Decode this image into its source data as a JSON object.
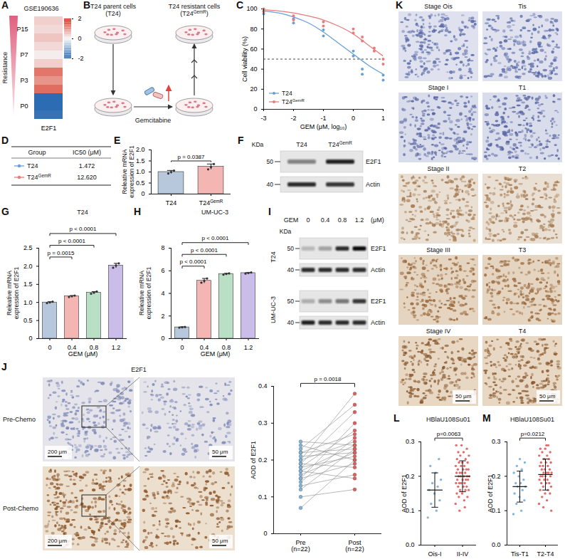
{
  "superscript_text": "GemR",
  "chart_data": [
    {
      "panel": "A",
      "type": "heatmap",
      "title": "GSE190636",
      "side_label": "Resistance",
      "categories": [
        "E2F1"
      ],
      "rows": [
        null,
        "P15",
        null,
        null,
        "P7",
        null,
        null,
        "P3",
        null,
        null,
        "P0",
        null
      ],
      "values": [
        [
          0.4
        ],
        [
          0.3
        ],
        [
          0.5
        ],
        [
          0.3
        ],
        [
          0.1
        ],
        [
          0.4
        ],
        [
          1.3
        ],
        [
          1.0
        ],
        [
          1.4
        ],
        [
          -2.0
        ],
        [
          -2.0
        ],
        [
          -1.9
        ]
      ],
      "colorbar": {
        "range": [
          -2,
          2
        ],
        "ticks": [
          -2,
          0,
          2
        ],
        "colors": [
          "#2b6cb3",
          "#f7f7f7",
          "#d7301f"
        ]
      }
    },
    {
      "panel": "C",
      "type": "line",
      "x_label": "GEM (μM, log₁₀)",
      "y_label": "Cell viability (%)",
      "xlim": [
        -3,
        1
      ],
      "xticks": [
        -3,
        -2,
        -1,
        0,
        1
      ],
      "ylim": [
        0,
        100
      ],
      "yticks": [
        0,
        20,
        40,
        60,
        80,
        100
      ],
      "threshold": 50,
      "legend": "lower left",
      "series": [
        {
          "name": "T24",
          "color": "#6b9fd4",
          "x": [
            -3,
            -3,
            -2,
            -2,
            -1,
            -1,
            0,
            0,
            0.3,
            0.3,
            1,
            1
          ],
          "values": [
            98,
            95,
            90,
            86,
            79,
            73,
            58,
            53,
            40,
            35,
            34,
            29
          ],
          "fit_x": [
            -3,
            -2.5,
            -2,
            -1.5,
            -1,
            -0.5,
            0,
            0.5,
            1
          ],
          "fit_values": [
            98,
            96,
            92,
            86,
            77,
            66,
            55,
            44,
            35
          ]
        },
        {
          "name": "T24GemR",
          "color": "#e97b7b",
          "x": [
            -3,
            -3,
            -2,
            -2,
            -1,
            -1,
            0,
            0,
            0.3,
            0.3,
            0.7,
            0.7,
            1,
            1
          ],
          "values": [
            100,
            97,
            93,
            89,
            87,
            83,
            80,
            76,
            72,
            68,
            61,
            58,
            50,
            45
          ],
          "fit_x": [
            -3,
            -2.5,
            -2,
            -1.5,
            -1,
            -0.5,
            0,
            0.5,
            1
          ],
          "fit_values": [
            99,
            98,
            96,
            93,
            89,
            83,
            75,
            64,
            53
          ]
        }
      ]
    },
    {
      "panel": "E",
      "type": "bar",
      "y_label": "Releative mRNA expression of E2F1",
      "categories": [
        "T24",
        "T24GemR"
      ],
      "values": [
        1.0,
        1.24
      ],
      "error": [
        0.07,
        0.12
      ],
      "points": [
        [
          0.93,
          1.0,
          1.06
        ],
        [
          1.12,
          1.22,
          1.36
        ]
      ],
      "colors": [
        "#b7c8dc",
        "#f3b6b3"
      ],
      "ylim": [
        0,
        2
      ],
      "yticks": [
        0,
        0.5,
        {
          "value": 1,
          "label": "1.0"
        },
        1.5,
        {
          "value": 2,
          "label": "2.0"
        }
      ],
      "comparisons": [
        {
          "pair": [
            "T24",
            "T24GemR"
          ],
          "label": "p = 0.0387"
        }
      ]
    },
    {
      "panel": "G",
      "type": "bar",
      "title": "T24",
      "x_label": "GEM (μM)",
      "y_label": "Releative mRNA expression of E2F1",
      "categories": [
        "0",
        "0.4",
        "0.8",
        "1.2"
      ],
      "values": [
        1.0,
        1.17,
        1.27,
        2.02
      ],
      "error": [
        0.02,
        0.02,
        0.03,
        0.06
      ],
      "points": [
        [
          0.98,
          1.0,
          1.02
        ],
        [
          1.15,
          1.17,
          1.19
        ],
        [
          1.24,
          1.27,
          1.3
        ],
        [
          1.96,
          2.02,
          2.08
        ]
      ],
      "colors": [
        "#b7c8dc",
        "#f3b6b3",
        "#b9dfc5",
        "#cbbde9"
      ],
      "ylim": [
        0,
        2.5
      ],
      "yticks": [
        0,
        0.5,
        {
          "value": 1,
          "label": "1.0"
        },
        1.5,
        {
          "value": 2,
          "label": "2.0"
        },
        2.5
      ],
      "comparisons": [
        {
          "pair": [
            "0",
            "0.4"
          ],
          "label": "p = 0.0015"
        },
        {
          "pair": [
            "0",
            "0.8"
          ],
          "label": "p < 0.0001"
        },
        {
          "pair": [
            "0",
            "1.2"
          ],
          "label": "p < 0.0001"
        }
      ]
    },
    {
      "panel": "H",
      "type": "bar",
      "title": "UM-UC-3",
      "x_label": "GEM (μM)",
      "y_label": "Releative mRNA expression of E2F1",
      "categories": [
        "0",
        "0.4",
        "0.8",
        "1.2"
      ],
      "values": [
        1.0,
        5.12,
        5.72,
        5.8
      ],
      "error": [
        0.04,
        0.2,
        0.05,
        0.05
      ],
      "points": [
        [
          0.97,
          1.0,
          1.03
        ],
        [
          4.95,
          5.1,
          5.32
        ],
        [
          5.66,
          5.72,
          5.77
        ],
        [
          5.75,
          5.8,
          5.85
        ]
      ],
      "colors": [
        "#b7c8dc",
        "#f3b6b3",
        "#b9dfc5",
        "#cbbde9"
      ],
      "ylim": [
        0,
        8
      ],
      "yticks": [
        0,
        2,
        4,
        6,
        8
      ],
      "comparisons": [
        {
          "pair": [
            "0",
            "0.4"
          ],
          "label": "p < 0.0001"
        },
        {
          "pair": [
            "0",
            "0.8"
          ],
          "label": "p < 0.0001"
        },
        {
          "pair": [
            "0",
            "1.2"
          ],
          "label": "p < 0.0001"
        }
      ]
    },
    {
      "panel": "J",
      "type": "paired_scatter",
      "y_label": "AOD of E2F1",
      "categories": [
        "Pre (n=22)",
        "Post (n=22)"
      ],
      "values": [
        [
          0.07,
          0.1,
          0.12,
          0.13,
          0.14,
          0.15,
          0.15,
          0.16,
          0.17,
          0.17,
          0.18,
          0.18,
          0.19,
          0.19,
          0.2,
          0.2,
          0.21,
          0.22,
          0.22,
          0.23,
          0.24,
          0.25
        ],
        [
          0.2,
          0.12,
          0.23,
          0.16,
          0.26,
          0.19,
          0.3,
          0.22,
          0.15,
          0.24,
          0.28,
          0.21,
          0.33,
          0.18,
          0.25,
          0.38,
          0.22,
          0.27,
          0.23,
          0.35,
          0.2,
          0.24
        ]
      ],
      "colors": [
        "#7fb3da",
        "#e25b5b"
      ],
      "ylim": [
        0,
        0.4
      ],
      "yticks": [
        0,
        0.1,
        0.2,
        0.3,
        0.4
      ],
      "comparisons": [
        {
          "pair": [
            "Pre (n=22)",
            "Post (n=22)"
          ],
          "label": "p = 0.0018"
        }
      ]
    },
    {
      "panel": "L",
      "type": "scatter",
      "title": "HBlaU108Su01",
      "y_label": "AOD of E2F1",
      "categories": [
        "Ois-I",
        "II-IV"
      ],
      "values": [
        [
          0.08,
          0.1,
          0.12,
          0.13,
          0.15,
          0.16,
          0.17,
          0.18,
          0.19,
          0.21,
          0.23,
          0.25
        ],
        [
          0.12,
          0.13,
          0.14,
          0.14,
          0.15,
          0.15,
          0.16,
          0.16,
          0.16,
          0.17,
          0.17,
          0.17,
          0.18,
          0.18,
          0.18,
          0.18,
          0.19,
          0.19,
          0.19,
          0.19,
          0.2,
          0.2,
          0.2,
          0.2,
          0.2,
          0.21,
          0.21,
          0.21,
          0.21,
          0.22,
          0.22,
          0.22,
          0.22,
          0.23,
          0.23,
          0.23,
          0.24,
          0.24,
          0.24,
          0.25,
          0.25,
          0.26,
          0.26,
          0.27,
          0.27,
          0.28,
          0.29,
          0.29,
          0.11,
          0.1
        ]
      ],
      "mean": [
        0.16,
        0.2
      ],
      "sd": [
        0.05,
        0.045
      ],
      "colors": [
        "#87b5d8",
        "#e06d6c"
      ],
      "ylim": [
        0,
        0.3
      ],
      "yticks": [
        {
          "value": 0,
          "label": "0.0"
        },
        0.1,
        0.2,
        0.3
      ],
      "comparisons": [
        {
          "pair": [
            "Ois-I",
            "II-IV"
          ],
          "label": "p=0.0063"
        }
      ]
    },
    {
      "panel": "M",
      "type": "scatter",
      "title": "HBlaU108Su01",
      "y_label": "AOD of E2F1",
      "categories": [
        "Tis-T1",
        "T2-T4"
      ],
      "values": [
        [
          0.09,
          0.1,
          0.12,
          0.13,
          0.14,
          0.15,
          0.16,
          0.17,
          0.17,
          0.18,
          0.18,
          0.19,
          0.2,
          0.21,
          0.22,
          0.23,
          0.24,
          0.25
        ],
        [
          0.12,
          0.13,
          0.14,
          0.15,
          0.15,
          0.16,
          0.16,
          0.17,
          0.17,
          0.18,
          0.18,
          0.18,
          0.19,
          0.19,
          0.19,
          0.2,
          0.2,
          0.2,
          0.2,
          0.21,
          0.21,
          0.21,
          0.21,
          0.22,
          0.22,
          0.22,
          0.23,
          0.23,
          0.23,
          0.24,
          0.24,
          0.24,
          0.25,
          0.25,
          0.26,
          0.26,
          0.27,
          0.27,
          0.28,
          0.28,
          0.29,
          0.11,
          0.1,
          0.29
        ]
      ],
      "mean": [
        0.17,
        0.205
      ],
      "sd": [
        0.045,
        0.045
      ],
      "colors": [
        "#87b5d8",
        "#e06d6c"
      ],
      "ylim": [
        0,
        0.3
      ],
      "yticks": [
        {
          "value": 0,
          "label": "0.0"
        },
        0.1,
        0.2,
        0.3
      ],
      "comparisons": [
        {
          "pair": [
            "Tis-T1",
            "T2-T4"
          ],
          "label": "p=0.0212"
        }
      ]
    }
  ],
  "schematic": {
    "panel": "B",
    "parent": "T24 parent cells (T24)",
    "resistant": "T24 resistant cells (T24GemR)",
    "drug": "Gemcitabine"
  },
  "table": {
    "panel": "D",
    "header": [
      "Group",
      "IC50 (μM)"
    ],
    "rows": [
      [
        "T24",
        "1.472"
      ],
      [
        "T24GemR",
        "12.620"
      ]
    ],
    "colors": [
      "#6b9fd4",
      "#e97b7b"
    ]
  },
  "blots": [
    {
      "panel": "F",
      "lanes": [
        "T24",
        "T24GemR"
      ],
      "kda_label": "KDa",
      "rows": [
        {
          "protein": "E2F1",
          "marker": "50",
          "band_intensity": [
            0.45,
            0.9
          ]
        },
        {
          "protein": "Actin",
          "marker": "40",
          "band_intensity": [
            0.85,
            0.8
          ]
        }
      ]
    },
    {
      "panel": "I",
      "treatment": "GEM",
      "unit": "(μM)",
      "lanes": [
        "0",
        "0.4",
        "0.8",
        "1.2"
      ],
      "kda_label": "KDa",
      "groups": [
        {
          "name": "T24",
          "rows": [
            {
              "protein": "E2F1",
              "marker": "50",
              "band_intensity": [
                0.2,
                0.3,
                0.85,
                1.0
              ]
            },
            {
              "protein": "Actin",
              "marker": "40",
              "band_intensity": [
                0.85,
                0.85,
                0.85,
                0.85
              ]
            }
          ]
        },
        {
          "name": "UM-UC-3",
          "rows": [
            {
              "protein": "E2F1",
              "marker": "50",
              "band_intensity": [
                0.25,
                0.4,
                0.5,
                0.8
              ]
            },
            {
              "protein": "Actin",
              "marker": "40",
              "band_intensity": [
                0.9,
                0.85,
                0.85,
                0.85
              ]
            }
          ]
        }
      ]
    }
  ],
  "histology": {
    "J": {
      "panel": "J",
      "header": "E2F1",
      "rows": [
        "Pre-Chemo",
        "Post-Chemo"
      ],
      "scale_bars": [
        "200 μm",
        "50 μm"
      ]
    },
    "K": {
      "panel": "K",
      "columns": [
        [
          "Stage Ois",
          "Stage I",
          "Stage II",
          "Stage III",
          "Stage IV"
        ],
        [
          "Tis",
          "T1",
          "T2",
          "T3",
          "T4"
        ]
      ],
      "scale_bar": "50 μm"
    }
  }
}
